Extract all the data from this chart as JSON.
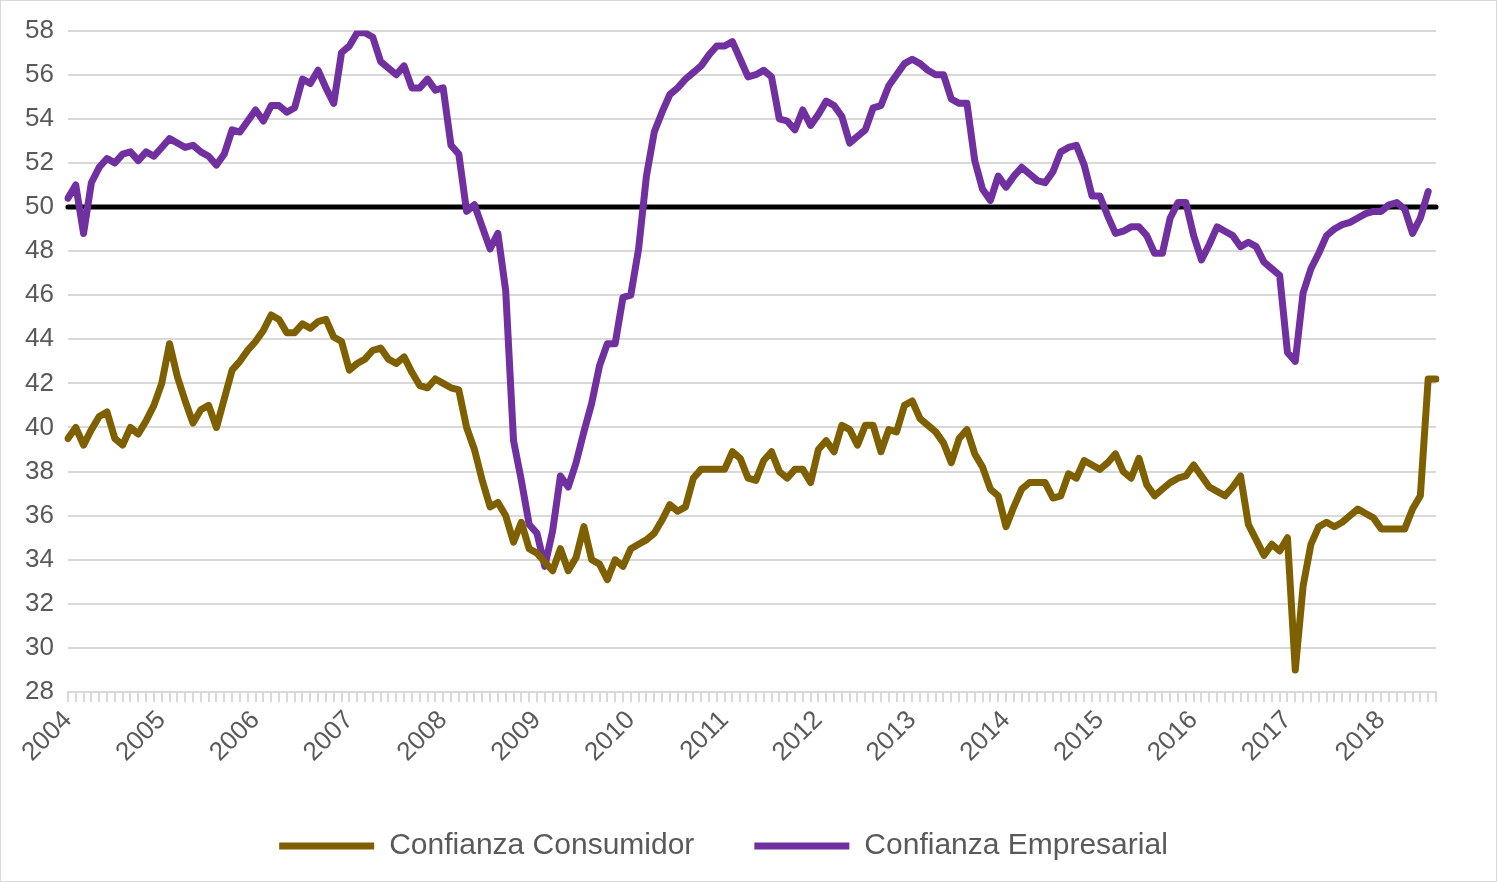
{
  "chart_data": {
    "type": "line",
    "categories": [
      "2004",
      null,
      null,
      null,
      null,
      null,
      null,
      null,
      null,
      null,
      null,
      null,
      "2005",
      null,
      null,
      null,
      null,
      null,
      null,
      null,
      null,
      null,
      null,
      null,
      "2006",
      null,
      null,
      null,
      null,
      null,
      null,
      null,
      null,
      null,
      null,
      null,
      "2007",
      null,
      null,
      null,
      null,
      null,
      null,
      null,
      null,
      null,
      null,
      null,
      "2008",
      null,
      null,
      null,
      null,
      null,
      null,
      null,
      null,
      null,
      null,
      null,
      "2009",
      null,
      null,
      null,
      null,
      null,
      null,
      null,
      null,
      null,
      null,
      null,
      "2010",
      null,
      null,
      null,
      null,
      null,
      null,
      null,
      null,
      null,
      null,
      null,
      "2011",
      null,
      null,
      null,
      null,
      null,
      null,
      null,
      null,
      null,
      null,
      null,
      "2012",
      null,
      null,
      null,
      null,
      null,
      null,
      null,
      null,
      null,
      null,
      null,
      "2013",
      null,
      null,
      null,
      null,
      null,
      null,
      null,
      null,
      null,
      null,
      null,
      "2014",
      null,
      null,
      null,
      null,
      null,
      null,
      null,
      null,
      null,
      null,
      null,
      "2015",
      null,
      null,
      null,
      null,
      null,
      null,
      null,
      null,
      null,
      null,
      null,
      "2016",
      null,
      null,
      null,
      null,
      null,
      null,
      null,
      null,
      null,
      null,
      null,
      "2017",
      null,
      null,
      null,
      null,
      null,
      null,
      null,
      null,
      null,
      null,
      null,
      "2018",
      null,
      null,
      null,
      null,
      null,
      null,
      null
    ],
    "series": [
      {
        "name": "Confianza Consumidor",
        "color": "#7f6000",
        "values": [
          39.5,
          40.0,
          39.2,
          39.9,
          40.5,
          40.7,
          39.5,
          39.2,
          40.0,
          39.7,
          40.3,
          41.0,
          42.0,
          43.8,
          42.3,
          41.2,
          40.2,
          40.8,
          41.0,
          40.0,
          41.3,
          42.6,
          43.0,
          43.5,
          43.9,
          44.4,
          45.1,
          44.9,
          44.3,
          44.3,
          44.7,
          44.5,
          44.8,
          44.9,
          44.1,
          43.9,
          42.6,
          42.9,
          43.1,
          43.5,
          43.6,
          43.1,
          42.9,
          43.2,
          42.5,
          41.9,
          41.8,
          42.2,
          42.0,
          41.8,
          41.7,
          40.0,
          39.0,
          37.6,
          36.4,
          36.6,
          36.0,
          34.8,
          35.7,
          34.5,
          34.3,
          33.9,
          33.5,
          34.5,
          33.5,
          34.1,
          35.5,
          34.0,
          33.8,
          33.1,
          34.0,
          33.7,
          34.5,
          34.7,
          34.9,
          35.2,
          35.8,
          36.5,
          36.2,
          36.4,
          37.7,
          38.1,
          38.1,
          38.1,
          38.1,
          38.9,
          38.6,
          37.7,
          37.6,
          38.5,
          38.9,
          38.0,
          37.7,
          38.1,
          38.1,
          37.5,
          39.0,
          39.4,
          38.9,
          40.1,
          39.9,
          39.2,
          40.1,
          40.1,
          38.9,
          39.9,
          39.8,
          41.0,
          41.2,
          40.4,
          40.1,
          39.8,
          39.3,
          38.4,
          39.5,
          39.9,
          38.8,
          38.2,
          37.2,
          36.9,
          35.5,
          36.4,
          37.2,
          37.5,
          37.5,
          37.5,
          36.8,
          36.9,
          37.9,
          37.7,
          38.5,
          38.3,
          38.1,
          38.4,
          38.8,
          38.0,
          37.7,
          38.6,
          37.4,
          36.9,
          37.2,
          37.5,
          37.7,
          37.8,
          38.3,
          37.8,
          37.3,
          37.1,
          36.9,
          37.3,
          37.8,
          35.6,
          34.9,
          34.2,
          34.7,
          34.4,
          35.0,
          29.0,
          32.8,
          34.7,
          35.5,
          35.7,
          35.5,
          35.7,
          36.0,
          36.3,
          36.1,
          35.9,
          35.4,
          35.4,
          35.4,
          35.4,
          36.3,
          36.9,
          42.2,
          42.2
        ]
      },
      {
        "name": "Confianza Empresarial",
        "color": "#7030a0",
        "values": [
          50.4,
          51.0,
          48.8,
          51.1,
          51.8,
          52.2,
          52.0,
          52.4,
          52.5,
          52.1,
          52.5,
          52.3,
          52.7,
          53.1,
          52.9,
          52.7,
          52.8,
          52.5,
          52.3,
          51.9,
          52.4,
          53.5,
          53.4,
          53.9,
          54.4,
          53.9,
          54.6,
          54.6,
          54.3,
          54.5,
          55.8,
          55.6,
          56.2,
          55.4,
          54.7,
          57.0,
          57.3,
          57.9,
          57.9,
          57.7,
          56.6,
          56.3,
          56.0,
          56.4,
          55.4,
          55.4,
          55.8,
          55.3,
          55.4,
          52.8,
          52.4,
          49.8,
          50.1,
          49.1,
          48.1,
          48.8,
          46.2,
          39.4,
          37.6,
          35.6,
          35.2,
          33.7,
          35.3,
          37.8,
          37.3,
          38.4,
          39.8,
          41.1,
          42.8,
          43.8,
          43.8,
          45.9,
          46.0,
          48.1,
          51.4,
          53.4,
          54.3,
          55.1,
          55.4,
          55.8,
          56.1,
          56.4,
          56.9,
          57.3,
          57.3,
          57.5,
          56.7,
          55.9,
          56.0,
          56.2,
          55.9,
          54.0,
          53.9,
          53.5,
          54.4,
          53.7,
          54.2,
          54.8,
          54.6,
          54.1,
          52.9,
          53.2,
          53.5,
          54.5,
          54.6,
          55.5,
          56.0,
          56.5,
          56.7,
          56.5,
          56.2,
          56.0,
          56.0,
          54.9,
          54.7,
          54.7,
          52.1,
          50.8,
          50.3,
          51.4,
          50.9,
          51.4,
          51.8,
          51.5,
          51.2,
          51.1,
          51.6,
          52.5,
          52.7,
          52.8,
          51.9,
          50.5,
          50.5,
          49.6,
          48.8,
          48.9,
          49.1,
          49.1,
          48.7,
          47.9,
          47.9,
          49.5,
          50.2,
          50.2,
          48.7,
          47.6,
          48.3,
          49.1,
          48.9,
          48.7,
          48.2,
          48.4,
          48.2,
          47.5,
          47.2,
          46.9,
          43.4,
          43.0,
          46.1,
          47.2,
          47.9,
          48.7,
          49.0,
          49.2,
          49.3,
          49.5,
          49.7,
          49.8,
          49.8,
          50.1,
          50.2,
          49.9,
          48.8,
          49.5,
          50.7,
          null
        ]
      }
    ],
    "ylim": [
      28,
      58
    ],
    "yticks": [
      28,
      30,
      32,
      34,
      36,
      38,
      40,
      42,
      44,
      46,
      48,
      50,
      52,
      54,
      56,
      58
    ],
    "grid": "y",
    "legend": "bottom",
    "marker": "none",
    "line_style": "solid",
    "ref_lines": [
      {
        "axis": "y",
        "value": 50,
        "color": "#000000"
      }
    ]
  }
}
